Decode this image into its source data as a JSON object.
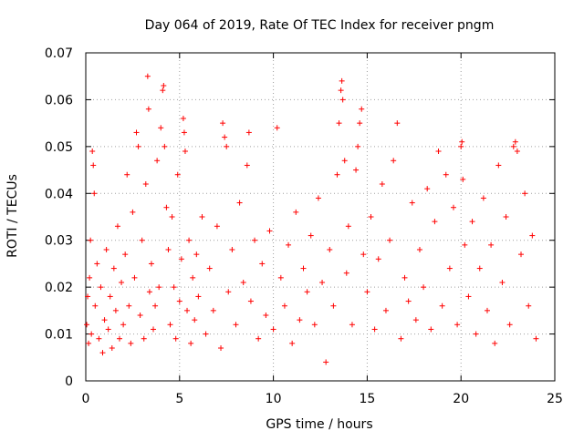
{
  "chart_data": {
    "type": "scatter",
    "title": "Day 064 of 2019, Rate Of TEC Index for receiver pngm",
    "xlabel": "GPS time / hours",
    "ylabel": "ROTI / TECUs",
    "xlim": [
      0,
      25
    ],
    "ylim": [
      0,
      0.07
    ],
    "x_ticks": [
      0,
      5,
      10,
      15,
      20,
      25
    ],
    "y_ticks": [
      0,
      0.01,
      0.02,
      0.03,
      0.04,
      0.05,
      0.06,
      0.07
    ],
    "x_tick_labels": [
      "0",
      "5",
      "10",
      "15",
      "20",
      "25"
    ],
    "y_tick_labels": [
      "0",
      "0.01",
      "0.02",
      "0.03",
      "0.04",
      "0.05",
      "0.06",
      "0.07"
    ],
    "grid": true,
    "marker": "+",
    "series": [
      {
        "name": "ROTI",
        "color": "#ff0000",
        "points": [
          [
            0.05,
            0.012
          ],
          [
            0.1,
            0.018
          ],
          [
            0.15,
            0.008
          ],
          [
            0.2,
            0.022
          ],
          [
            0.25,
            0.03
          ],
          [
            0.3,
            0.01
          ],
          [
            0.35,
            0.049
          ],
          [
            0.4,
            0.046
          ],
          [
            0.45,
            0.04
          ],
          [
            0.5,
            0.016
          ],
          [
            0.6,
            0.025
          ],
          [
            0.7,
            0.009
          ],
          [
            0.8,
            0.02
          ],
          [
            0.9,
            0.006
          ],
          [
            1.0,
            0.013
          ],
          [
            1.1,
            0.028
          ],
          [
            1.2,
            0.011
          ],
          [
            1.3,
            0.018
          ],
          [
            1.4,
            0.007
          ],
          [
            1.5,
            0.024
          ],
          [
            1.6,
            0.015
          ],
          [
            1.7,
            0.033
          ],
          [
            1.8,
            0.009
          ],
          [
            1.9,
            0.021
          ],
          [
            2.0,
            0.012
          ],
          [
            2.1,
            0.027
          ],
          [
            2.2,
            0.044
          ],
          [
            2.3,
            0.016
          ],
          [
            2.4,
            0.008
          ],
          [
            2.5,
            0.036
          ],
          [
            2.6,
            0.022
          ],
          [
            2.7,
            0.053
          ],
          [
            2.8,
            0.05
          ],
          [
            2.9,
            0.014
          ],
          [
            3.0,
            0.03
          ],
          [
            3.1,
            0.009
          ],
          [
            3.2,
            0.042
          ],
          [
            3.3,
            0.065
          ],
          [
            3.35,
            0.058
          ],
          [
            3.4,
            0.019
          ],
          [
            3.5,
            0.025
          ],
          [
            3.6,
            0.011
          ],
          [
            3.7,
            0.016
          ],
          [
            3.8,
            0.047
          ],
          [
            3.9,
            0.02
          ],
          [
            4.0,
            0.054
          ],
          [
            4.1,
            0.062
          ],
          [
            4.15,
            0.063
          ],
          [
            4.2,
            0.05
          ],
          [
            4.3,
            0.037
          ],
          [
            4.4,
            0.028
          ],
          [
            4.5,
            0.012
          ],
          [
            4.6,
            0.035
          ],
          [
            4.7,
            0.02
          ],
          [
            4.8,
            0.009
          ],
          [
            4.9,
            0.044
          ],
          [
            5.0,
            0.017
          ],
          [
            5.1,
            0.026
          ],
          [
            5.2,
            0.056
          ],
          [
            5.25,
            0.053
          ],
          [
            5.3,
            0.049
          ],
          [
            5.4,
            0.015
          ],
          [
            5.5,
            0.03
          ],
          [
            5.6,
            0.008
          ],
          [
            5.7,
            0.022
          ],
          [
            5.8,
            0.013
          ],
          [
            5.9,
            0.027
          ],
          [
            6.0,
            0.018
          ],
          [
            6.2,
            0.035
          ],
          [
            6.4,
            0.01
          ],
          [
            6.6,
            0.024
          ],
          [
            6.8,
            0.015
          ],
          [
            7.0,
            0.033
          ],
          [
            7.2,
            0.007
          ],
          [
            7.3,
            0.055
          ],
          [
            7.4,
            0.052
          ],
          [
            7.5,
            0.05
          ],
          [
            7.6,
            0.019
          ],
          [
            7.8,
            0.028
          ],
          [
            8.0,
            0.012
          ],
          [
            8.2,
            0.038
          ],
          [
            8.4,
            0.021
          ],
          [
            8.6,
            0.046
          ],
          [
            8.7,
            0.053
          ],
          [
            8.8,
            0.017
          ],
          [
            9.0,
            0.03
          ],
          [
            9.2,
            0.009
          ],
          [
            9.4,
            0.025
          ],
          [
            9.6,
            0.014
          ],
          [
            9.8,
            0.032
          ],
          [
            10.0,
            0.011
          ],
          [
            10.2,
            0.054
          ],
          [
            10.4,
            0.022
          ],
          [
            10.6,
            0.016
          ],
          [
            10.8,
            0.029
          ],
          [
            11.0,
            0.008
          ],
          [
            11.2,
            0.036
          ],
          [
            11.4,
            0.013
          ],
          [
            11.6,
            0.024
          ],
          [
            11.8,
            0.019
          ],
          [
            12.0,
            0.031
          ],
          [
            12.2,
            0.012
          ],
          [
            12.4,
            0.039
          ],
          [
            12.6,
            0.021
          ],
          [
            12.8,
            0.004
          ],
          [
            13.0,
            0.028
          ],
          [
            13.2,
            0.016
          ],
          [
            13.4,
            0.044
          ],
          [
            13.5,
            0.055
          ],
          [
            13.6,
            0.062
          ],
          [
            13.65,
            0.064
          ],
          [
            13.7,
            0.06
          ],
          [
            13.8,
            0.047
          ],
          [
            13.9,
            0.023
          ],
          [
            14.0,
            0.033
          ],
          [
            14.2,
            0.012
          ],
          [
            14.4,
            0.045
          ],
          [
            14.5,
            0.05
          ],
          [
            14.6,
            0.055
          ],
          [
            14.7,
            0.058
          ],
          [
            14.8,
            0.027
          ],
          [
            15.0,
            0.019
          ],
          [
            15.2,
            0.035
          ],
          [
            15.4,
            0.011
          ],
          [
            15.6,
            0.026
          ],
          [
            15.8,
            0.042
          ],
          [
            16.0,
            0.015
          ],
          [
            16.2,
            0.03
          ],
          [
            16.4,
            0.047
          ],
          [
            16.6,
            0.055
          ],
          [
            16.8,
            0.009
          ],
          [
            17.0,
            0.022
          ],
          [
            17.2,
            0.017
          ],
          [
            17.4,
            0.038
          ],
          [
            17.6,
            0.013
          ],
          [
            17.8,
            0.028
          ],
          [
            18.0,
            0.02
          ],
          [
            18.2,
            0.041
          ],
          [
            18.4,
            0.011
          ],
          [
            18.6,
            0.034
          ],
          [
            18.8,
            0.049
          ],
          [
            19.0,
            0.016
          ],
          [
            19.2,
            0.044
          ],
          [
            19.4,
            0.024
          ],
          [
            19.6,
            0.037
          ],
          [
            19.8,
            0.012
          ],
          [
            20.0,
            0.05
          ],
          [
            20.05,
            0.051
          ],
          [
            20.1,
            0.043
          ],
          [
            20.2,
            0.029
          ],
          [
            20.4,
            0.018
          ],
          [
            20.6,
            0.034
          ],
          [
            20.8,
            0.01
          ],
          [
            21.0,
            0.024
          ],
          [
            21.2,
            0.039
          ],
          [
            21.4,
            0.015
          ],
          [
            21.6,
            0.029
          ],
          [
            21.8,
            0.008
          ],
          [
            22.0,
            0.046
          ],
          [
            22.2,
            0.021
          ],
          [
            22.4,
            0.035
          ],
          [
            22.6,
            0.012
          ],
          [
            22.8,
            0.05
          ],
          [
            22.9,
            0.051
          ],
          [
            23.0,
            0.049
          ],
          [
            23.2,
            0.027
          ],
          [
            23.4,
            0.04
          ],
          [
            23.6,
            0.016
          ],
          [
            23.8,
            0.031
          ],
          [
            24.0,
            0.009
          ]
        ]
      }
    ]
  }
}
